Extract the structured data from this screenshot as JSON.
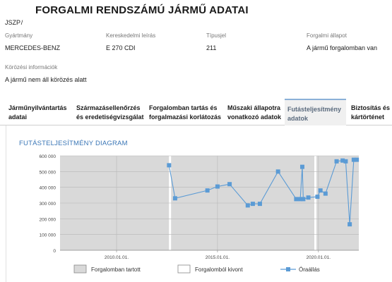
{
  "header": {
    "title": "FORGALMI RENDSZÁMÚ JÁRMŰ ADATAI",
    "plate": "JSZP /"
  },
  "fields": [
    {
      "label": "Gyártmány",
      "value": "MERCEDES-BENZ"
    },
    {
      "label": "Kereskedelmi leírás",
      "value": "E 270 CDI"
    },
    {
      "label": "Típusjel",
      "value": "211"
    },
    {
      "label": "Forgalmi állapot",
      "value": "A jármű forgalomban van"
    }
  ],
  "wanted": {
    "label": "Körözési információk",
    "value": "A jármű nem áll körözés alatt"
  },
  "tabs": [
    {
      "line1": "Járműnyilvántartás",
      "line2": "adatai",
      "active": false
    },
    {
      "line1": "Származásellenőrzés",
      "line2": "és eredetiségvizsgálat",
      "active": false
    },
    {
      "line1": "Forgalomban tartás és",
      "line2": "forgalmazási korlátozás",
      "active": false
    },
    {
      "line1": "Műszaki állapotra",
      "line2": "vonatkozó adatok",
      "active": false
    },
    {
      "line1": "Futásteljesítmény",
      "line2": "adatok",
      "active": true
    },
    {
      "line1": "Biztosítás és",
      "line2": "kártörténet",
      "active": false
    }
  ],
  "chart_data": {
    "type": "line",
    "title": "FUTÁSTELJESÍTMÉNY DIAGRAM",
    "ylim": [
      0,
      600000
    ],
    "yticks": [
      "600 000",
      "500 000",
      "400 000",
      "300 000",
      "200 000",
      "100 000",
      "0"
    ],
    "ytick_values": [
      600000,
      500000,
      400000,
      300000,
      200000,
      100000,
      0
    ],
    "xlim": [
      2007.2,
      2022.0
    ],
    "xticks": [
      {
        "label": "2010.01.01.",
        "value": 2010.0
      },
      {
        "label": "2015.01.01.",
        "value": 2015.0
      },
      {
        "label": "2020.01.01.",
        "value": 2020.0
      }
    ],
    "grid": true,
    "shaded_periods": [
      {
        "state": "Forgalomban tartott",
        "from": 2007.2,
        "to": 2012.6
      },
      {
        "state": "Forgalomból kivont",
        "from": 2012.6,
        "to": 2012.7
      },
      {
        "state": "Forgalomban tartott",
        "from": 2012.7,
        "to": 2019.8
      },
      {
        "state": "Forgalomból kivont",
        "from": 2019.8,
        "to": 2019.9
      },
      {
        "state": "Forgalomban tartott",
        "from": 2019.9,
        "to": 2022.0
      }
    ],
    "series": [
      {
        "name": "Óraállás",
        "color": "#5b9bd5",
        "x": [
          2012.6,
          2012.9,
          2014.5,
          2015.0,
          2015.6,
          2016.5,
          2016.75,
          2017.1,
          2018.0,
          2018.9,
          2019.1,
          2019.2,
          2019.25,
          2019.5,
          2019.95,
          2020.1,
          2020.35,
          2020.9,
          2021.2,
          2021.35,
          2021.55,
          2021.75,
          2021.9
        ],
        "y": [
          540000,
          330000,
          380000,
          405000,
          420000,
          285000,
          295000,
          295000,
          500000,
          325000,
          325000,
          530000,
          325000,
          335000,
          340000,
          380000,
          360000,
          565000,
          570000,
          565000,
          165000,
          575000,
          575000
        ]
      }
    ],
    "legend": [
      {
        "label": "Forgalomban tartott",
        "kind": "box",
        "color": "#d9d9d9"
      },
      {
        "label": "Forgalomból kivont",
        "kind": "box",
        "color": "#ffffff"
      },
      {
        "label": "Óraállás",
        "kind": "line",
        "color": "#5b9bd5"
      }
    ],
    "legend_position": "bottom"
  }
}
